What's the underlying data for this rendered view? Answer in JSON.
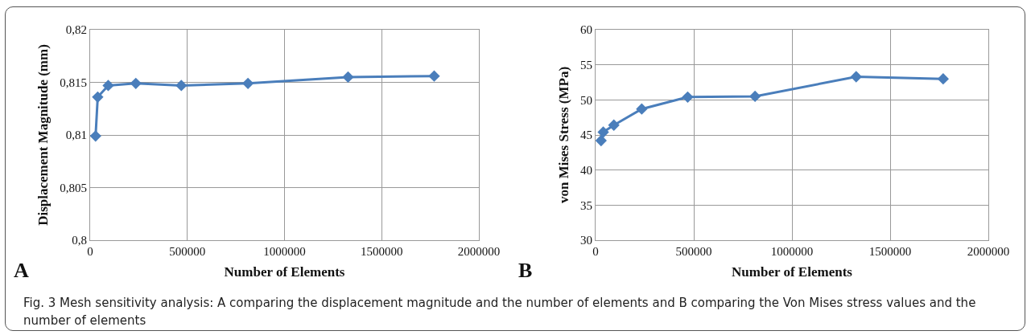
{
  "chart_data": [
    {
      "type": "line",
      "xlabel": "Number of Elements",
      "ylabel": "Displacement Magnitude (mm)",
      "x": [
        28000,
        39000,
        93000,
        235000,
        469000,
        812000,
        1327000,
        1770000
      ],
      "series": [
        {
          "color": "#4a7ebb",
          "values": [
            0.8099,
            0.8136,
            0.8147,
            0.8149,
            0.8147,
            0.8149,
            0.8155,
            0.8156
          ]
        }
      ],
      "xlim": [
        0,
        2000000
      ],
      "xticks": [
        0,
        500000,
        1000000,
        1500000,
        2000000
      ],
      "ylim": [
        0.8,
        0.82
      ],
      "yticks": [
        {
          "value": 0.8,
          "label": "0,8"
        },
        {
          "value": 0.805,
          "label": "0,805"
        },
        {
          "value": 0.81,
          "label": "0,81"
        },
        {
          "value": 0.815,
          "label": "0,815"
        },
        {
          "value": 0.82,
          "label": "0,82"
        }
      ],
      "grid": true,
      "marker": "diamond",
      "line_style": "solid",
      "annotations": [
        "A",
        "Fig. 3 Mesh sensitivity analysis: A comparing the displacement magnitude and the number of elements and B comparing the Von Mises stress values and the number of elements"
      ]
    },
    {
      "type": "line",
      "xlabel": "Number of Elements",
      "ylabel": "von Mises Stress (MPa)",
      "x": [
        28000,
        39000,
        93000,
        235000,
        469000,
        812000,
        1327000,
        1770000
      ],
      "series": [
        {
          "color": "#4a7ebb",
          "values": [
            44.2,
            45.4,
            46.4,
            48.7,
            50.4,
            50.5,
            53.3,
            53.0
          ]
        }
      ],
      "xlim": [
        0,
        2000000
      ],
      "xticks": [
        0,
        500000,
        1000000,
        1500000,
        2000000
      ],
      "ylim": [
        30,
        60
      ],
      "yticks": [
        30,
        35,
        40,
        45,
        50,
        55,
        60
      ],
      "grid": true,
      "marker": "diamond",
      "line_style": "solid",
      "annotations": [
        "B"
      ]
    }
  ]
}
